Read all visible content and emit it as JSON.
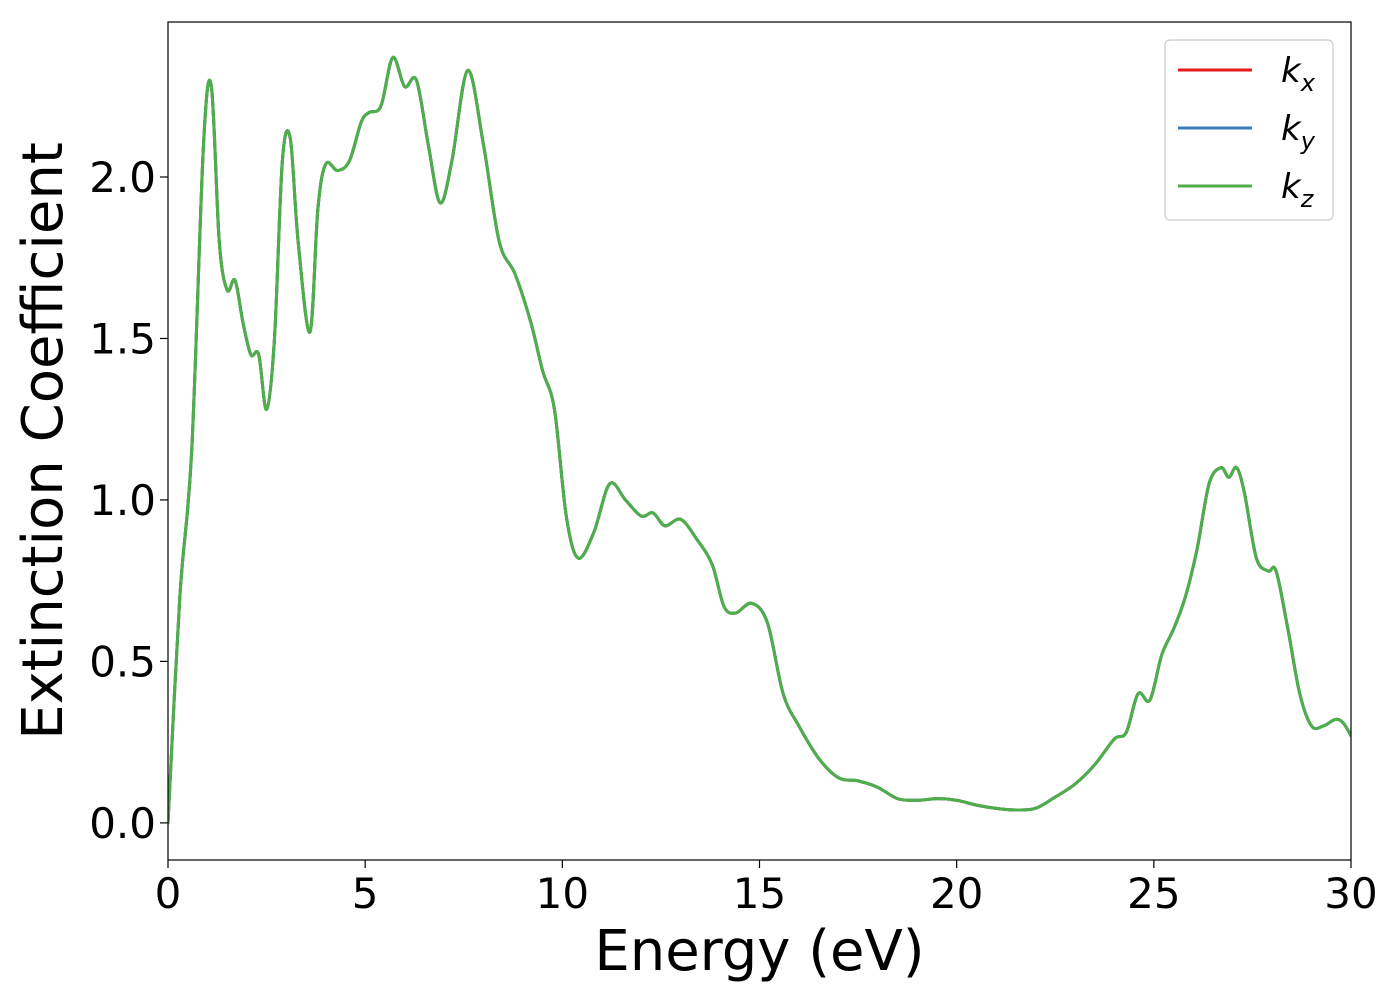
{
  "chart_data": {
    "type": "line",
    "title": "",
    "xlabel": "Energy (eV)",
    "ylabel": "Extinction Coefficient",
    "xlim": [
      0,
      30
    ],
    "ylim": [
      -0.115,
      2.48
    ],
    "xticks": [
      0,
      5,
      10,
      15,
      20,
      25,
      30
    ],
    "xtick_labels": [
      "0",
      "5",
      "10",
      "15",
      "20",
      "25",
      "30"
    ],
    "yticks": [
      0.0,
      0.5,
      1.0,
      1.5,
      2.0
    ],
    "ytick_labels": [
      "0.0",
      "0.5",
      "1.0",
      "1.5",
      "2.0"
    ],
    "grid": false,
    "legend_position": "top-right",
    "series": [
      {
        "name": "k",
        "subscript": "x",
        "color": "#e41a1c",
        "x": [
          0,
          0.3,
          0.6,
          0.9,
          1.1,
          1.3,
          1.5,
          1.7,
          1.9,
          2.1,
          2.3,
          2.5,
          2.7,
          2.9,
          3.1,
          3.3,
          3.6,
          3.8,
          4.0,
          4.3,
          4.6,
          4.9,
          5.1,
          5.4,
          5.7,
          6.0,
          6.3,
          6.6,
          6.9,
          7.2,
          7.6,
          8.0,
          8.4,
          8.8,
          9.2,
          9.5,
          9.8,
          10.1,
          10.4,
          10.8,
          11.2,
          11.6,
          12.0,
          12.3,
          12.6,
          13.0,
          13.4,
          13.8,
          14.1,
          14.4,
          14.8,
          15.2,
          15.6,
          16.0,
          16.5,
          17.0,
          17.5,
          18.0,
          18.5,
          19.0,
          19.5,
          20.0,
          20.5,
          21.0,
          21.5,
          22.0,
          22.5,
          23.0,
          23.5,
          24.0,
          24.3,
          24.6,
          24.9,
          25.2,
          25.5,
          25.8,
          26.1,
          26.4,
          26.7,
          26.9,
          27.1,
          27.3,
          27.6,
          27.9,
          28.1,
          28.4,
          28.7,
          29.0,
          29.3,
          29.6,
          29.8,
          30.0
        ],
        "y": [
          0.0,
          0.7,
          1.15,
          2.1,
          2.28,
          1.8,
          1.65,
          1.68,
          1.55,
          1.45,
          1.45,
          1.28,
          1.5,
          2.05,
          2.12,
          1.8,
          1.52,
          1.9,
          2.04,
          2.02,
          2.05,
          2.17,
          2.2,
          2.22,
          2.37,
          2.28,
          2.3,
          2.1,
          1.92,
          2.05,
          2.33,
          2.1,
          1.8,
          1.7,
          1.55,
          1.4,
          1.28,
          0.95,
          0.82,
          0.9,
          1.05,
          1.0,
          0.95,
          0.96,
          0.92,
          0.94,
          0.88,
          0.8,
          0.67,
          0.65,
          0.68,
          0.62,
          0.4,
          0.3,
          0.2,
          0.14,
          0.13,
          0.11,
          0.075,
          0.07,
          0.075,
          0.07,
          0.055,
          0.045,
          0.04,
          0.045,
          0.08,
          0.12,
          0.18,
          0.26,
          0.28,
          0.4,
          0.38,
          0.52,
          0.6,
          0.7,
          0.85,
          1.05,
          1.1,
          1.07,
          1.1,
          1.02,
          0.82,
          0.78,
          0.78,
          0.6,
          0.4,
          0.3,
          0.3,
          0.32,
          0.31,
          0.27
        ]
      },
      {
        "name": "k",
        "subscript": "y",
        "color": "#377eb8",
        "x": [
          0,
          0.3,
          0.6,
          0.9,
          1.1,
          1.3,
          1.5,
          1.7,
          1.9,
          2.1,
          2.3,
          2.5,
          2.7,
          2.9,
          3.1,
          3.3,
          3.6,
          3.8,
          4.0,
          4.3,
          4.6,
          4.9,
          5.1,
          5.4,
          5.7,
          6.0,
          6.3,
          6.6,
          6.9,
          7.2,
          7.6,
          8.0,
          8.4,
          8.8,
          9.2,
          9.5,
          9.8,
          10.1,
          10.4,
          10.8,
          11.2,
          11.6,
          12.0,
          12.3,
          12.6,
          13.0,
          13.4,
          13.8,
          14.1,
          14.4,
          14.8,
          15.2,
          15.6,
          16.0,
          16.5,
          17.0,
          17.5,
          18.0,
          18.5,
          19.0,
          19.5,
          20.0,
          20.5,
          21.0,
          21.5,
          22.0,
          22.5,
          23.0,
          23.5,
          24.0,
          24.3,
          24.6,
          24.9,
          25.2,
          25.5,
          25.8,
          26.1,
          26.4,
          26.7,
          26.9,
          27.1,
          27.3,
          27.6,
          27.9,
          28.1,
          28.4,
          28.7,
          29.0,
          29.3,
          29.6,
          29.8,
          30.0
        ],
        "y": [
          0.0,
          0.7,
          1.15,
          2.1,
          2.28,
          1.8,
          1.65,
          1.68,
          1.55,
          1.45,
          1.45,
          1.28,
          1.5,
          2.05,
          2.12,
          1.8,
          1.52,
          1.9,
          2.04,
          2.02,
          2.05,
          2.17,
          2.2,
          2.22,
          2.37,
          2.28,
          2.3,
          2.1,
          1.92,
          2.05,
          2.33,
          2.1,
          1.8,
          1.7,
          1.55,
          1.4,
          1.28,
          0.95,
          0.82,
          0.9,
          1.05,
          1.0,
          0.95,
          0.96,
          0.92,
          0.94,
          0.88,
          0.8,
          0.67,
          0.65,
          0.68,
          0.62,
          0.4,
          0.3,
          0.2,
          0.14,
          0.13,
          0.11,
          0.075,
          0.07,
          0.075,
          0.07,
          0.055,
          0.045,
          0.04,
          0.045,
          0.08,
          0.12,
          0.18,
          0.26,
          0.28,
          0.4,
          0.38,
          0.52,
          0.6,
          0.7,
          0.85,
          1.05,
          1.1,
          1.07,
          1.1,
          1.02,
          0.82,
          0.78,
          0.78,
          0.6,
          0.4,
          0.3,
          0.3,
          0.32,
          0.31,
          0.27
        ]
      },
      {
        "name": "k",
        "subscript": "z",
        "color": "#4daf4a",
        "x": [
          0,
          0.3,
          0.6,
          0.9,
          1.1,
          1.3,
          1.5,
          1.7,
          1.9,
          2.1,
          2.3,
          2.5,
          2.7,
          2.9,
          3.1,
          3.3,
          3.6,
          3.8,
          4.0,
          4.3,
          4.6,
          4.9,
          5.1,
          5.4,
          5.7,
          6.0,
          6.3,
          6.6,
          6.9,
          7.2,
          7.6,
          8.0,
          8.4,
          8.8,
          9.2,
          9.5,
          9.8,
          10.1,
          10.4,
          10.8,
          11.2,
          11.6,
          12.0,
          12.3,
          12.6,
          13.0,
          13.4,
          13.8,
          14.1,
          14.4,
          14.8,
          15.2,
          15.6,
          16.0,
          16.5,
          17.0,
          17.5,
          18.0,
          18.5,
          19.0,
          19.5,
          20.0,
          20.5,
          21.0,
          21.5,
          22.0,
          22.5,
          23.0,
          23.5,
          24.0,
          24.3,
          24.6,
          24.9,
          25.2,
          25.5,
          25.8,
          26.1,
          26.4,
          26.7,
          26.9,
          27.1,
          27.3,
          27.6,
          27.9,
          28.1,
          28.4,
          28.7,
          29.0,
          29.3,
          29.6,
          29.8,
          30.0
        ],
        "y": [
          0.0,
          0.7,
          1.15,
          2.1,
          2.28,
          1.8,
          1.65,
          1.68,
          1.55,
          1.45,
          1.45,
          1.28,
          1.5,
          2.05,
          2.12,
          1.8,
          1.52,
          1.9,
          2.04,
          2.02,
          2.05,
          2.17,
          2.2,
          2.22,
          2.37,
          2.28,
          2.3,
          2.1,
          1.92,
          2.05,
          2.33,
          2.1,
          1.8,
          1.7,
          1.55,
          1.4,
          1.28,
          0.95,
          0.82,
          0.9,
          1.05,
          1.0,
          0.95,
          0.96,
          0.92,
          0.94,
          0.88,
          0.8,
          0.67,
          0.65,
          0.68,
          0.62,
          0.4,
          0.3,
          0.2,
          0.14,
          0.13,
          0.11,
          0.075,
          0.07,
          0.075,
          0.07,
          0.055,
          0.045,
          0.04,
          0.045,
          0.08,
          0.12,
          0.18,
          0.26,
          0.28,
          0.4,
          0.38,
          0.52,
          0.6,
          0.7,
          0.85,
          1.05,
          1.1,
          1.07,
          1.1,
          1.02,
          0.82,
          0.78,
          0.78,
          0.6,
          0.4,
          0.3,
          0.3,
          0.32,
          0.31,
          0.27
        ]
      }
    ]
  }
}
